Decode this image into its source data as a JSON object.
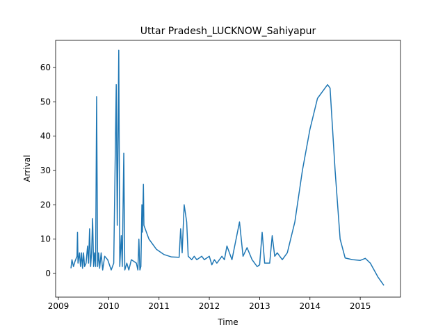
{
  "chart_data": {
    "type": "line",
    "title": "Uttar Pradesh_LUCKNOW_Sahiyapur",
    "x_label": "Time",
    "y_label": "Arrival",
    "x": [
      2009.25,
      2009.27,
      2009.3,
      2009.33,
      2009.37,
      2009.38,
      2009.39,
      2009.42,
      2009.44,
      2009.46,
      2009.48,
      2009.5,
      2009.52,
      2009.55,
      2009.58,
      2009.6,
      2009.62,
      2009.64,
      2009.66,
      2009.68,
      2009.7,
      2009.72,
      2009.74,
      2009.76,
      2009.78,
      2009.8,
      2009.82,
      2009.85,
      2009.88,
      2009.92,
      2009.98,
      2010.05,
      2010.1,
      2010.15,
      2010.17,
      2010.2,
      2010.22,
      2010.25,
      2010.27,
      2010.3,
      2010.32,
      2010.36,
      2010.4,
      2010.45,
      2010.55,
      2010.58,
      2010.6,
      2010.62,
      2010.64,
      2010.66,
      2010.67,
      2010.69,
      2010.7,
      2010.8,
      2010.95,
      2011.1,
      2011.25,
      2011.4,
      2011.43,
      2011.46,
      2011.5,
      2011.55,
      2011.58,
      2011.65,
      2011.7,
      2011.75,
      2011.85,
      2011.9,
      2012.0,
      2012.05,
      2012.1,
      2012.15,
      2012.25,
      2012.3,
      2012.35,
      2012.45,
      2012.6,
      2012.67,
      2012.75,
      2012.85,
      2012.95,
      2013.0,
      2013.05,
      2013.1,
      2013.2,
      2013.25,
      2013.3,
      2013.35,
      2013.45,
      2013.55,
      2013.7,
      2013.85,
      2014.0,
      2014.15,
      2014.35,
      2014.4,
      2014.5,
      2014.6,
      2014.7,
      2014.85,
      2015.0,
      2015.1,
      2015.2,
      2015.35,
      2015.47
    ],
    "series": [
      {
        "name": "Arrival",
        "color": "#1f77b4",
        "values": [
          1.5,
          4,
          2,
          3.5,
          5,
          12,
          3,
          6,
          2,
          6,
          1.5,
          6,
          2,
          3,
          8,
          3,
          13,
          2,
          6,
          16,
          2,
          6,
          2,
          51.5,
          2,
          6,
          1.5,
          6,
          1,
          5,
          4,
          1,
          3,
          55,
          14,
          65,
          2,
          11,
          2,
          35,
          1,
          3,
          1,
          4,
          3,
          1,
          10,
          1,
          2,
          20,
          12,
          26,
          14,
          10,
          7,
          5.5,
          4.8,
          4.7,
          13,
          6,
          20,
          15,
          5,
          4,
          5,
          4,
          5,
          4,
          5,
          2.5,
          4,
          3,
          5,
          4,
          8,
          4,
          15,
          5,
          7.5,
          4,
          2,
          2.5,
          12,
          3,
          3,
          11,
          5,
          6,
          4,
          6,
          15,
          30,
          42,
          51,
          55,
          54,
          30,
          10,
          4.5,
          4,
          3.8,
          4.4,
          3,
          -1,
          -3.5
        ]
      }
    ],
    "xlim": [
      2008.945,
      2015.8
    ],
    "ylim": [
      -6.9,
      67.9
    ],
    "xticks": [
      2009,
      2010,
      2011,
      2012,
      2013,
      2014,
      2015
    ],
    "yticks": [
      0,
      10,
      20,
      30,
      40,
      50,
      60
    ]
  }
}
